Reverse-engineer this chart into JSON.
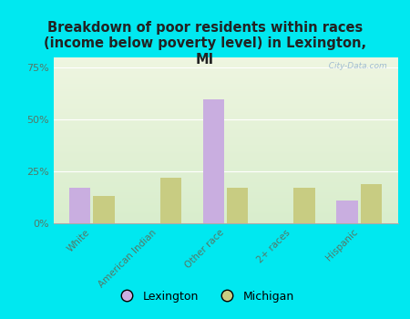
{
  "categories": [
    "White",
    "American Indian",
    "Other race",
    "2+ races",
    "Hispanic"
  ],
  "lexington": [
    17,
    0,
    60,
    0,
    11
  ],
  "michigan": [
    13,
    22,
    17,
    17,
    19
  ],
  "lexington_color": "#c9aee0",
  "michigan_color": "#c8cc82",
  "title": "Breakdown of poor residents within races\n(income below poverty level) in Lexington,\nMI",
  "title_fontsize": 10.5,
  "background_outer": "#00e8f0",
  "background_plot_top": "#eef5e0",
  "background_plot_bottom": "#d8edcc",
  "ylim": [
    0,
    80
  ],
  "yticks": [
    0,
    25,
    50,
    75
  ],
  "ytick_labels": [
    "0%",
    "25%",
    "50%",
    "75%"
  ],
  "watermark": "  City-Data.com",
  "legend_lexington": "Lexington",
  "legend_michigan": "Michigan",
  "bar_width": 0.32,
  "bar_gap": 0.04
}
